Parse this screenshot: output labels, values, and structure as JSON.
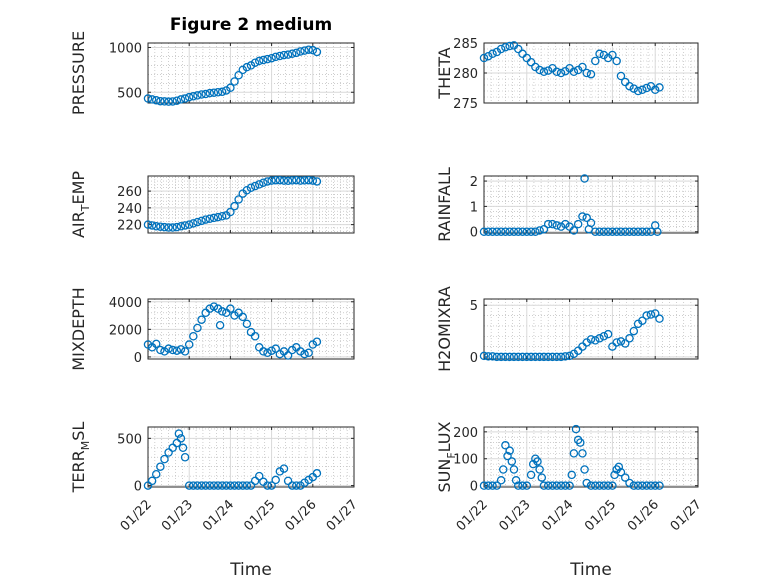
{
  "figure_title": "Figure 2 medium",
  "colors": {
    "marker": "#0072BD",
    "axis": "#262626",
    "grid": "#b0b0b0"
  },
  "chart_data": [
    {
      "type": "scatter",
      "ylabel": "PRESSURE",
      "ylim": [
        380,
        1050
      ],
      "yticks": [
        500,
        1000
      ],
      "ytick_labels": [
        "500",
        "1000"
      ],
      "xlim": [
        0,
        5
      ],
      "xticks": [
        0,
        1,
        2,
        3,
        4,
        5
      ],
      "xtick_labels": [
        "01/22",
        "01/23",
        "01/24",
        "01/25",
        "01/26",
        "01/27"
      ],
      "xlabel": "",
      "x": [
        0.0,
        0.1,
        0.2,
        0.3,
        0.4,
        0.5,
        0.6,
        0.7,
        0.8,
        0.9,
        1.0,
        1.1,
        1.2,
        1.3,
        1.4,
        1.5,
        1.6,
        1.7,
        1.8,
        1.9,
        2.0,
        2.1,
        2.2,
        2.3,
        2.4,
        2.5,
        2.6,
        2.7,
        2.8,
        2.9,
        3.0,
        3.1,
        3.2,
        3.3,
        3.4,
        3.5,
        3.6,
        3.7,
        3.8,
        3.9,
        4.0,
        4.1
      ],
      "y": [
        430,
        420,
        410,
        400,
        398,
        395,
        397,
        405,
        420,
        430,
        445,
        455,
        465,
        475,
        480,
        490,
        495,
        500,
        505,
        520,
        550,
        620,
        690,
        750,
        780,
        800,
        830,
        850,
        860,
        870,
        880,
        895,
        905,
        915,
        920,
        930,
        940,
        955,
        965,
        975,
        970,
        950
      ]
    },
    {
      "type": "scatter",
      "ylabel": "THETA",
      "ylim": [
        275,
        285
      ],
      "yticks": [
        275,
        280,
        285
      ],
      "ytick_labels": [
        "275",
        "280",
        "285"
      ],
      "xlim": [
        0,
        5
      ],
      "xticks": [
        0,
        1,
        2,
        3,
        4,
        5
      ],
      "xtick_labels": [
        "01/22",
        "01/23",
        "01/24",
        "01/25",
        "01/26",
        "01/27"
      ],
      "xlabel": "",
      "x": [
        0.0,
        0.1,
        0.2,
        0.3,
        0.4,
        0.5,
        0.6,
        0.7,
        0.8,
        0.9,
        1.0,
        1.1,
        1.2,
        1.3,
        1.4,
        1.5,
        1.6,
        1.7,
        1.8,
        1.9,
        2.0,
        2.1,
        2.2,
        2.3,
        2.4,
        2.5,
        2.6,
        2.7,
        2.8,
        2.9,
        3.0,
        3.1,
        3.2,
        3.3,
        3.4,
        3.5,
        3.6,
        3.7,
        3.8,
        3.9,
        4.0,
        4.1
      ],
      "y": [
        282.5,
        282.8,
        283.2,
        283.5,
        284.0,
        284.3,
        284.5,
        284.6,
        284.0,
        283.2,
        282.5,
        281.8,
        281.0,
        280.5,
        280.2,
        280.4,
        280.8,
        280.2,
        280.0,
        280.3,
        280.8,
        280.2,
        280.5,
        281.0,
        280.0,
        279.8,
        282.0,
        283.2,
        283.0,
        282.5,
        283.0,
        282.0,
        279.5,
        278.5,
        277.8,
        277.4,
        277.0,
        277.2,
        277.5,
        277.8,
        277.2,
        277.6
      ]
    },
    {
      "type": "scatter",
      "ylabel": "AIR_TEMP",
      "ylim": [
        210,
        278
      ],
      "yticks": [
        220,
        240,
        260
      ],
      "ytick_labels": [
        "220",
        "240",
        "260"
      ],
      "xlim": [
        0,
        5
      ],
      "xticks": [
        0,
        1,
        2,
        3,
        4,
        5
      ],
      "xtick_labels": [
        "01/22",
        "01/23",
        "01/24",
        "01/25",
        "01/26",
        "01/27"
      ],
      "xlabel": "",
      "x": [
        0.0,
        0.1,
        0.2,
        0.3,
        0.4,
        0.5,
        0.6,
        0.7,
        0.8,
        0.9,
        1.0,
        1.1,
        1.2,
        1.3,
        1.4,
        1.5,
        1.6,
        1.7,
        1.8,
        1.9,
        2.0,
        2.1,
        2.2,
        2.3,
        2.4,
        2.5,
        2.6,
        2.7,
        2.8,
        2.9,
        3.0,
        3.1,
        3.2,
        3.3,
        3.4,
        3.5,
        3.6,
        3.7,
        3.8,
        3.9,
        4.0,
        4.1
      ],
      "y": [
        220,
        219,
        218,
        217.5,
        217,
        216.5,
        216.5,
        217,
        218,
        219,
        220,
        221.5,
        223,
        224.5,
        226,
        227,
        228,
        229,
        230,
        231,
        235,
        242,
        250,
        257,
        261,
        264,
        266,
        268,
        270,
        271.5,
        272.5,
        273,
        273,
        272.5,
        272.3,
        272.8,
        273,
        272.5,
        272.8,
        273,
        272.5,
        271.5
      ]
    },
    {
      "type": "scatter",
      "ylabel": "RAINFALL",
      "ylim": [
        -0.05,
        2.2
      ],
      "yticks": [
        0,
        1,
        2
      ],
      "ytick_labels": [
        "0",
        "1",
        "2"
      ],
      "xlim": [
        0,
        5
      ],
      "xticks": [
        0,
        1,
        2,
        3,
        4,
        5
      ],
      "xtick_labels": [
        "01/22",
        "01/23",
        "01/24",
        "01/25",
        "01/26",
        "01/27"
      ],
      "xlabel": "",
      "x": [
        0.0,
        0.1,
        0.2,
        0.3,
        0.4,
        0.5,
        0.6,
        0.7,
        0.8,
        0.9,
        1.0,
        1.1,
        1.2,
        1.3,
        1.4,
        1.5,
        1.6,
        1.7,
        1.8,
        1.9,
        2.0,
        2.1,
        2.2,
        2.3,
        2.35,
        2.4,
        2.45,
        2.5,
        2.6,
        2.7,
        2.8,
        2.9,
        3.0,
        3.1,
        3.2,
        3.3,
        3.4,
        3.5,
        3.6,
        3.7,
        3.8,
        3.9,
        4.0,
        4.05
      ],
      "y": [
        0,
        0,
        0,
        0,
        0,
        0,
        0,
        0,
        0,
        0,
        0,
        0,
        0,
        0.05,
        0.1,
        0.3,
        0.3,
        0.25,
        0.2,
        0.3,
        0.2,
        0.05,
        0.3,
        0.6,
        2.1,
        0.55,
        0.1,
        0.35,
        0,
        0,
        0,
        0,
        0,
        0,
        0,
        0,
        0,
        0,
        0,
        0,
        0,
        0,
        0.25,
        0
      ]
    },
    {
      "type": "scatter",
      "ylabel": "MIXDEPTH",
      "ylim": [
        -150,
        4200
      ],
      "yticks": [
        0,
        2000,
        4000
      ],
      "ytick_labels": [
        "0",
        "2000",
        "4000"
      ],
      "xlim": [
        0,
        5
      ],
      "xticks": [
        0,
        1,
        2,
        3,
        4,
        5
      ],
      "xtick_labels": [
        "01/22",
        "01/23",
        "01/24",
        "01/25",
        "01/26",
        "01/27"
      ],
      "xlabel": "",
      "x": [
        0.0,
        0.1,
        0.2,
        0.3,
        0.4,
        0.5,
        0.6,
        0.7,
        0.8,
        0.9,
        1.0,
        1.1,
        1.2,
        1.3,
        1.4,
        1.5,
        1.6,
        1.7,
        1.75,
        1.8,
        1.9,
        2.0,
        2.1,
        2.2,
        2.3,
        2.4,
        2.5,
        2.6,
        2.7,
        2.8,
        2.9,
        3.0,
        3.1,
        3.2,
        3.3,
        3.4,
        3.5,
        3.6,
        3.7,
        3.8,
        3.9,
        4.0,
        4.1
      ],
      "y": [
        900,
        700,
        950,
        500,
        400,
        600,
        500,
        450,
        550,
        400,
        900,
        1500,
        2100,
        2700,
        3200,
        3500,
        3650,
        3500,
        2300,
        3300,
        3200,
        3500,
        3000,
        3200,
        2900,
        2400,
        1800,
        1500,
        700,
        400,
        300,
        450,
        600,
        200,
        400,
        100,
        500,
        700,
        400,
        200,
        300,
        900,
        1100
      ]
    },
    {
      "type": "scatter",
      "ylabel": "H2OMIXRA",
      "ylim": [
        -0.2,
        5.6
      ],
      "yticks": [
        0,
        5
      ],
      "ytick_labels": [
        "0",
        "5"
      ],
      "xlim": [
        0,
        5
      ],
      "xticks": [
        0,
        1,
        2,
        3,
        4,
        5
      ],
      "xtick_labels": [
        "01/22",
        "01/23",
        "01/24",
        "01/25",
        "01/26",
        "01/27"
      ],
      "xlabel": "",
      "x": [
        0.0,
        0.1,
        0.2,
        0.3,
        0.4,
        0.5,
        0.6,
        0.7,
        0.8,
        0.9,
        1.0,
        1.1,
        1.2,
        1.3,
        1.4,
        1.5,
        1.6,
        1.7,
        1.8,
        1.9,
        2.0,
        2.1,
        2.2,
        2.3,
        2.4,
        2.5,
        2.6,
        2.7,
        2.8,
        2.9,
        3.0,
        3.1,
        3.2,
        3.3,
        3.4,
        3.5,
        3.6,
        3.7,
        3.8,
        3.9,
        4.0,
        4.1
      ],
      "y": [
        0.1,
        0.05,
        0.05,
        0,
        0,
        0,
        0,
        0,
        0,
        0,
        0,
        0,
        0,
        0,
        0,
        0,
        0,
        0,
        0,
        0.05,
        0.1,
        0.3,
        0.6,
        1.0,
        1.4,
        1.7,
        1.6,
        1.8,
        2.0,
        2.2,
        1.0,
        1.4,
        1.5,
        1.3,
        1.8,
        2.5,
        3.2,
        3.5,
        4.0,
        4.1,
        4.2,
        3.7
      ]
    },
    {
      "type": "scatter",
      "ylabel": "TERR_MSL",
      "ylim": [
        -15,
        620
      ],
      "yticks": [
        0,
        500
      ],
      "ytick_labels": [
        "0",
        "500"
      ],
      "xlim": [
        0,
        5
      ],
      "xticks": [
        0,
        1,
        2,
        3,
        4,
        5
      ],
      "xtick_labels": [
        "01/22",
        "01/23",
        "01/24",
        "01/25",
        "01/26",
        "01/27"
      ],
      "xlabel": "Time",
      "x": [
        0.0,
        0.1,
        0.2,
        0.3,
        0.4,
        0.5,
        0.6,
        0.7,
        0.75,
        0.8,
        0.85,
        0.9,
        1.0,
        1.1,
        1.2,
        1.3,
        1.4,
        1.5,
        1.6,
        1.7,
        1.8,
        1.9,
        2.0,
        2.1,
        2.2,
        2.3,
        2.4,
        2.5,
        2.6,
        2.7,
        2.8,
        2.9,
        3.0,
        3.1,
        3.2,
        3.3,
        3.4,
        3.5,
        3.6,
        3.7,
        3.8,
        3.9,
        4.0,
        4.1
      ],
      "y": [
        0,
        50,
        120,
        200,
        280,
        350,
        400,
        450,
        550,
        500,
        400,
        300,
        0,
        0,
        0,
        0,
        0,
        0,
        0,
        0,
        0,
        0,
        0,
        0,
        0,
        0,
        0,
        0,
        50,
        100,
        40,
        0,
        0,
        60,
        150,
        180,
        50,
        0,
        0,
        0,
        30,
        60,
        90,
        130
      ]
    },
    {
      "type": "scatter",
      "ylabel": "SUN_FLUX",
      "ylim": [
        -5,
        218
      ],
      "yticks": [
        0,
        100,
        200
      ],
      "ytick_labels": [
        "0",
        "100",
        "200"
      ],
      "xlim": [
        0,
        5
      ],
      "xticks": [
        0,
        1,
        2,
        3,
        4,
        5
      ],
      "xtick_labels": [
        "01/22",
        "01/23",
        "01/24",
        "01/25",
        "01/26",
        "01/27"
      ],
      "xlabel": "Time",
      "x": [
        0.0,
        0.1,
        0.2,
        0.3,
        0.4,
        0.45,
        0.5,
        0.55,
        0.6,
        0.65,
        0.7,
        0.75,
        0.8,
        0.9,
        1.0,
        1.1,
        1.15,
        1.2,
        1.25,
        1.3,
        1.35,
        1.4,
        1.5,
        1.6,
        1.7,
        1.8,
        1.9,
        2.0,
        2.05,
        2.1,
        2.15,
        2.2,
        2.25,
        2.3,
        2.35,
        2.4,
        2.5,
        2.6,
        2.7,
        2.8,
        2.9,
        3.0,
        3.05,
        3.1,
        3.15,
        3.2,
        3.3,
        3.4,
        3.5,
        3.6,
        3.7,
        3.8,
        3.9,
        4.0,
        4.1
      ],
      "y": [
        0,
        0,
        0,
        0,
        20,
        60,
        150,
        110,
        130,
        90,
        60,
        20,
        0,
        0,
        0,
        40,
        80,
        100,
        90,
        60,
        30,
        0,
        0,
        0,
        0,
        0,
        0,
        0,
        40,
        120,
        210,
        170,
        160,
        120,
        60,
        10,
        0,
        0,
        0,
        0,
        0,
        0,
        40,
        60,
        70,
        50,
        30,
        10,
        0,
        0,
        0,
        0,
        0,
        0,
        0
      ]
    }
  ]
}
